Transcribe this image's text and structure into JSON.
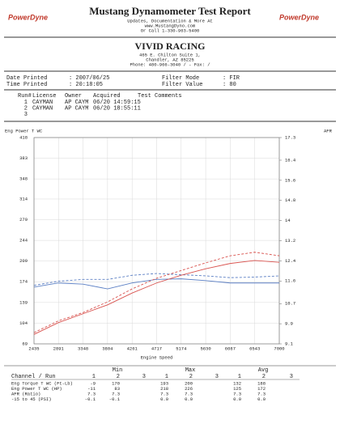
{
  "header": {
    "logo_left": "PowerDyne",
    "logo_right": "PowerDyne",
    "title": "Mustang Dynamometer Test Report",
    "lines": [
      "Updates, Documentation & More At",
      "www.MustangDyno.com",
      "Or Call 1-330-963-5400"
    ]
  },
  "shop": {
    "name": "VIVID RACING",
    "lines": [
      "465 E. Chilton Suite 1,",
      "Chandler, AZ  85225",
      "Phone: 480-966-3040 /  - Fax: /"
    ]
  },
  "info": {
    "date_label": "Date Printed",
    "date": ": 2007/06/25",
    "time_label": "Time Printed",
    "time": ": 20:18:05",
    "filter_mode_label": "Filter Mode",
    "filter_mode": ": FIR",
    "filter_value_label": "Filter Value",
    "filter_value": ": 80"
  },
  "runs": {
    "columns": [
      "Run#",
      "License",
      "Owner",
      "Acquired",
      "Test Comments"
    ],
    "rows": [
      [
        "1",
        "CAYMAN",
        "AP CAYM",
        "06/20 14:59:15"
      ],
      [
        "2",
        "CAYMAN",
        "AP CAYM",
        "06/20 18:55:11"
      ],
      [
        "3"
      ]
    ]
  },
  "chart_data": {
    "type": "line",
    "y_label": "Eng Power T WC",
    "y2_label": "AFR",
    "x_label": "Engine Speed",
    "x": [
      2435,
      2891,
      3348,
      3804,
      4261,
      4717,
      5174,
      5630,
      6087,
      6543,
      7000
    ],
    "xlim": [
      2435,
      7000
    ],
    "xticks": [
      2435,
      2891,
      3348,
      3804,
      4261,
      4717,
      5174,
      5630,
      6087,
      6543,
      7000
    ],
    "ylim": [
      69,
      418
    ],
    "yticks": [
      69,
      104,
      139,
      174,
      209,
      244,
      279,
      314,
      348,
      383,
      418
    ],
    "y2lim": [
      9.1,
      17.3
    ],
    "y2ticks": [
      9.1,
      9.9,
      10.7,
      11.6,
      12.4,
      13.2,
      14.0,
      14.8,
      15.6,
      16.4,
      17.3
    ],
    "grid": true,
    "series": [
      {
        "color": "#5b7fc4",
        "dashed": false,
        "values": [
          165,
          172,
          170,
          162,
          172,
          178,
          179,
          176,
          172,
          172,
          172
        ]
      },
      {
        "color": "#5b7fc4",
        "dashed": true,
        "values": [
          168,
          175,
          178,
          178,
          185,
          188,
          186,
          184,
          181,
          182,
          184
        ]
      },
      {
        "color": "#d9534f",
        "dashed": false,
        "values": [
          85,
          105,
          120,
          135,
          155,
          172,
          185,
          196,
          205,
          210,
          207
        ]
      },
      {
        "color": "#d9534f",
        "dashed": true,
        "values": [
          88,
          108,
          122,
          140,
          162,
          180,
          193,
          206,
          218,
          224,
          218
        ]
      }
    ]
  },
  "summary": {
    "groups": [
      "Min",
      "Max",
      "Avg"
    ],
    "channel_header": "Channel / Run",
    "run_numbers": [
      "1",
      "2",
      "3"
    ],
    "rows": [
      {
        "label": "Eng Torque T WC (Ft-Lb)",
        "color": "#5b7fc4",
        "values": [
          "-9",
          "170",
          "193",
          "200",
          "132",
          "188"
        ]
      },
      {
        "label": "Eng Power T WC (HP)",
        "color": "#d9534f",
        "values": [
          "-11",
          "83",
          "218",
          "226",
          "125",
          "172"
        ]
      },
      {
        "label": "AFR (Ratio)",
        "color": "#222222",
        "values": [
          "7.3",
          "7.3",
          "7.3",
          "7.3",
          "7.3",
          "7.3"
        ]
      },
      {
        "label": "-15 to 45 (PSI)",
        "color": "#d9534f",
        "values": [
          "-0.1",
          "-0.1",
          "0.0",
          "0.0",
          "0.0",
          "0.0"
        ]
      }
    ]
  }
}
